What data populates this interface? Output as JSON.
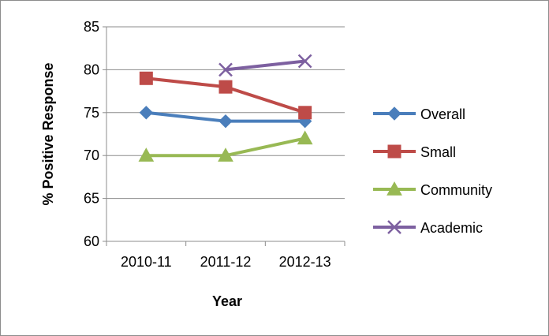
{
  "chart_data": {
    "type": "line",
    "title": "",
    "xlabel": "Year",
    "ylabel": "% Positive Response",
    "categories": [
      "2010-11",
      "2011-12",
      "2012-13"
    ],
    "ylim": [
      60,
      85
    ],
    "yticks": [
      60,
      65,
      70,
      75,
      80,
      85
    ],
    "grid": "horizontal",
    "legend_position": "right",
    "series": [
      {
        "name": "Overall",
        "values": [
          75,
          74,
          74
        ],
        "color": "#4a7ebb",
        "marker": "diamond"
      },
      {
        "name": "Small",
        "values": [
          79,
          78,
          75
        ],
        "color": "#be4b48",
        "marker": "square"
      },
      {
        "name": "Community",
        "values": [
          70,
          70,
          72
        ],
        "color": "#98b954",
        "marker": "triangle"
      },
      {
        "name": "Academic",
        "values": [
          null,
          80,
          81
        ],
        "color": "#7d60a0",
        "marker": "x"
      }
    ]
  }
}
